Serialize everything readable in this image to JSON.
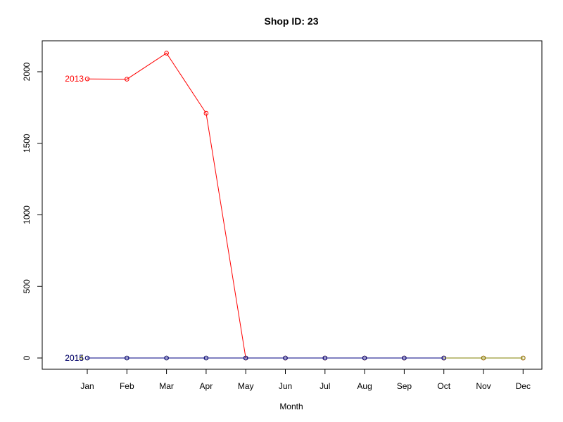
{
  "chart_data": {
    "type": "line",
    "title": "Shop ID: 23",
    "xlabel": "Month",
    "ylabel": "",
    "categories": [
      "Jan",
      "Feb",
      "Mar",
      "Apr",
      "May",
      "Jun",
      "Jul",
      "Aug",
      "Sep",
      "Oct",
      "Nov",
      "Dec"
    ],
    "ylim": [
      -80,
      2210
    ],
    "yticks": [
      0,
      500,
      1000,
      1500,
      2000
    ],
    "grid": false,
    "legend": "none",
    "series": [
      {
        "name": "2013",
        "color": "#ff0000",
        "values": [
          1950,
          1948,
          2130,
          1710,
          0,
          0,
          0,
          0,
          0,
          0,
          0,
          0
        ]
      },
      {
        "name": "2014",
        "color": "#808000",
        "values": [
          0,
          0,
          0,
          0,
          0,
          0,
          0,
          0,
          0,
          0,
          0,
          0
        ]
      },
      {
        "name": "2015",
        "color": "#000080",
        "values": [
          0,
          0,
          0,
          0,
          0,
          0,
          0,
          0,
          0,
          0,
          null,
          null
        ]
      }
    ]
  }
}
